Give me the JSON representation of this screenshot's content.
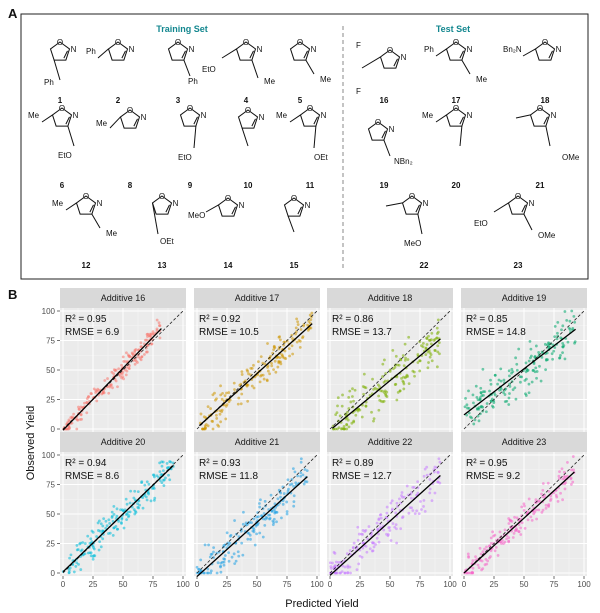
{
  "panel_a": {
    "letter": "A",
    "training_title": "Training Set",
    "test_title": "Test Set",
    "compounds": [
      {
        "num": "1",
        "set": "training",
        "labels": [
          "Ph"
        ]
      },
      {
        "num": "2",
        "set": "training",
        "labels": [
          "Ph"
        ]
      },
      {
        "num": "3",
        "set": "training",
        "labels": [
          "Ph"
        ]
      },
      {
        "num": "4",
        "set": "training",
        "labels": [
          "EtO",
          "Me"
        ]
      },
      {
        "num": "5",
        "set": "training",
        "labels": [
          "Me"
        ]
      },
      {
        "num": "6",
        "set": "training",
        "labels": [
          "Me",
          "EtO"
        ]
      },
      {
        "num": "8",
        "set": "training",
        "labels": [
          "Me"
        ]
      },
      {
        "num": "9",
        "set": "training",
        "labels": [
          "EtO"
        ]
      },
      {
        "num": "10",
        "set": "training",
        "labels": []
      },
      {
        "num": "11",
        "set": "training",
        "labels": [
          "Me",
          "OEt"
        ]
      },
      {
        "num": "12",
        "set": "training",
        "labels": [
          "Me",
          "Me"
        ]
      },
      {
        "num": "13",
        "set": "training",
        "labels": [
          "OEt"
        ]
      },
      {
        "num": "14",
        "set": "training",
        "labels": [
          "MeO"
        ]
      },
      {
        "num": "15",
        "set": "training",
        "labels": []
      },
      {
        "num": "16",
        "set": "test",
        "labels": [
          "F",
          "F"
        ]
      },
      {
        "num": "17",
        "set": "test",
        "labels": [
          "Ph",
          "Me"
        ]
      },
      {
        "num": "18",
        "set": "test",
        "labels": [
          "Bn₂N"
        ]
      },
      {
        "num": "19",
        "set": "test",
        "labels": [
          "NBn₂"
        ]
      },
      {
        "num": "20",
        "set": "test",
        "labels": [
          "Me"
        ]
      },
      {
        "num": "21",
        "set": "test",
        "labels": [
          "OMe"
        ]
      },
      {
        "num": "22",
        "set": "test",
        "labels": [
          "MeO"
        ]
      },
      {
        "num": "23",
        "set": "test",
        "labels": [
          "EtO",
          "OMe"
        ]
      }
    ]
  },
  "panel_b": {
    "letter": "B",
    "x_axis_title": "Predicted Yield",
    "y_axis_title": "Observed Yield"
  },
  "chart_data": [
    {
      "type": "scatter",
      "title": "Additive 16",
      "r2": "R² = 0.95",
      "rmse": "RMSE = 6.9",
      "color": "#f8766d",
      "fit": {
        "slope": 1.05,
        "intercept": -1
      },
      "xlim": [
        0,
        100
      ],
      "ylim": [
        0,
        100
      ],
      "x_ticks": [
        0,
        25,
        50,
        75,
        100
      ],
      "y_ticks": [
        0,
        25,
        50,
        75,
        100
      ],
      "point_cloud": {
        "count": 190,
        "x_range": [
          0,
          82
        ],
        "noise": 6.9,
        "seed": 16
      }
    },
    {
      "type": "scatter",
      "title": "Additive 17",
      "r2": "R² = 0.92",
      "rmse": "RMSE = 10.5",
      "color": "#cd9600",
      "fit": {
        "slope": 0.92,
        "intercept": 1
      },
      "xlim": [
        0,
        100
      ],
      "ylim": [
        0,
        100
      ],
      "x_ticks": [
        0,
        25,
        50,
        75,
        100
      ],
      "y_ticks": [
        0,
        25,
        50,
        75,
        100
      ],
      "point_cloud": {
        "count": 190,
        "x_range": [
          2,
          96
        ],
        "noise": 10.5,
        "seed": 17
      }
    },
    {
      "type": "scatter",
      "title": "Additive 18",
      "r2": "R² = 0.86",
      "rmse": "RMSE = 13.7",
      "color": "#7cae00",
      "fit": {
        "slope": 0.84,
        "intercept": -1
      },
      "xlim": [
        0,
        100
      ],
      "ylim": [
        0,
        100
      ],
      "x_ticks": [
        0,
        25,
        50,
        75,
        100
      ],
      "y_ticks": [
        0,
        25,
        50,
        75,
        100
      ],
      "point_cloud": {
        "count": 190,
        "x_range": [
          2,
          92
        ],
        "noise": 13.7,
        "seed": 18
      }
    },
    {
      "type": "scatter",
      "title": "Additive 19",
      "r2": "R² = 0.85",
      "rmse": "RMSE = 14.8",
      "color": "#00a86b",
      "fit": {
        "slope": 0.78,
        "intercept": 12
      },
      "xlim": [
        0,
        100
      ],
      "ylim": [
        0,
        100
      ],
      "x_ticks": [
        0,
        25,
        50,
        75,
        100
      ],
      "y_ticks": [
        0,
        25,
        50,
        75,
        100
      ],
      "point_cloud": {
        "count": 190,
        "x_range": [
          0,
          93
        ],
        "noise": 14.8,
        "seed": 19
      }
    },
    {
      "type": "scatter",
      "title": "Additive 20",
      "r2": "R² = 0.94",
      "rmse": "RMSE = 8.6",
      "color": "#00bcd8",
      "fit": {
        "slope": 0.98,
        "intercept": 1
      },
      "xlim": [
        0,
        100
      ],
      "ylim": [
        0,
        100
      ],
      "x_ticks": [
        0,
        25,
        50,
        75,
        100
      ],
      "y_ticks": [
        0,
        25,
        50,
        75,
        100
      ],
      "point_cloud": {
        "count": 190,
        "x_range": [
          0,
          92
        ],
        "noise": 8.6,
        "seed": 20
      }
    },
    {
      "type": "scatter",
      "title": "Additive 21",
      "r2": "R² = 0.93",
      "rmse": "RMSE = 11.8",
      "color": "#1fa0e3",
      "fit": {
        "slope": 0.92,
        "intercept": -3
      },
      "xlim": [
        0,
        100
      ],
      "ylim": [
        0,
        100
      ],
      "x_ticks": [
        0,
        25,
        50,
        75,
        100
      ],
      "y_ticks": [
        0,
        25,
        50,
        75,
        100
      ],
      "point_cloud": {
        "count": 190,
        "x_range": [
          0,
          92
        ],
        "noise": 11.8,
        "seed": 21
      }
    },
    {
      "type": "scatter",
      "title": "Additive 22",
      "r2": "R² = 0.89",
      "rmse": "RMSE = 12.7",
      "color": "#c77cff",
      "fit": {
        "slope": 0.92,
        "intercept": -2
      },
      "xlim": [
        0,
        100
      ],
      "ylim": [
        0,
        100
      ],
      "x_ticks": [
        0,
        25,
        50,
        75,
        100
      ],
      "y_ticks": [
        0,
        25,
        50,
        75,
        100
      ],
      "point_cloud": {
        "count": 190,
        "x_range": [
          0,
          92
        ],
        "noise": 12.7,
        "seed": 22
      }
    },
    {
      "type": "scatter",
      "title": "Additive 23",
      "r2": "R² = 0.95",
      "rmse": "RMSE = 9.2",
      "color": "#f564c9",
      "fit": {
        "slope": 0.93,
        "intercept": 0
      },
      "xlim": [
        0,
        100
      ],
      "ylim": [
        0,
        100
      ],
      "x_ticks": [
        0,
        25,
        50,
        75,
        100
      ],
      "y_ticks": [
        0,
        25,
        50,
        75,
        100
      ],
      "point_cloud": {
        "count": 190,
        "x_range": [
          0,
          92
        ],
        "noise": 9.2,
        "seed": 23
      }
    }
  ]
}
